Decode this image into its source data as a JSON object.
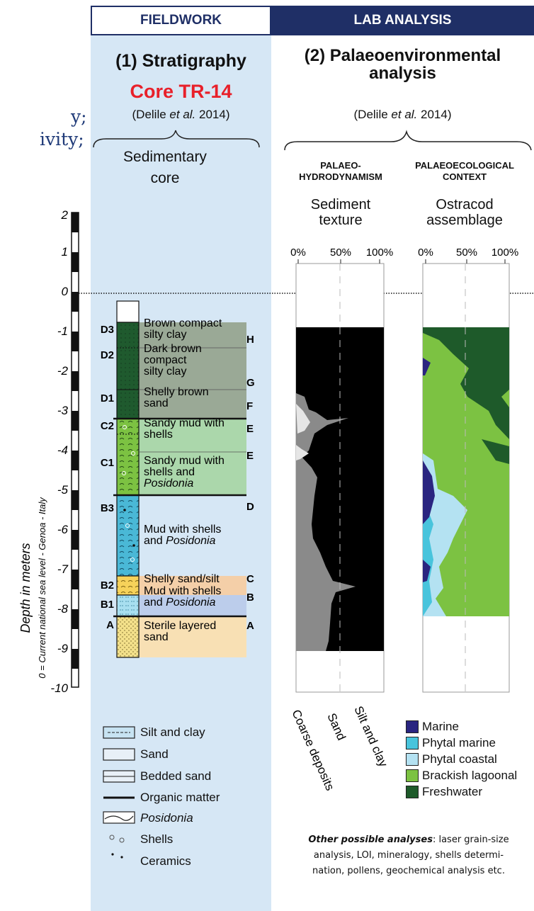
{
  "cut_text": [
    "y;",
    "ivity;"
  ],
  "headers": {
    "fieldwork": "FIELDWORK",
    "lab": "LAB ANALYSIS"
  },
  "stratigraphy": {
    "title": "(1) Stratigraphy",
    "core": "Core TR-14",
    "ref_prefix": "(Delile ",
    "ref_em": "et al.",
    "ref_suffix": " 2014)",
    "core_label_1": "Sedimentary",
    "core_label_2": "core"
  },
  "palaeo": {
    "title_1": "(2) Palaeoenvironmental",
    "title_2": "analysis",
    "ref_prefix": "(Delile ",
    "ref_em": "et al.",
    "ref_suffix": " 2014)",
    "hydro_1": "PALAEO-",
    "hydro_2": "HYDRODYNAMISM",
    "eco_1": "PALAEOECOLOGICAL",
    "eco_2": "CONTEXT",
    "texture_1": "Sediment",
    "texture_2": "texture",
    "ostracod_1": "Ostracod",
    "ostracod_2": "assemblage",
    "pct": [
      "0%",
      "50%",
      "100%"
    ],
    "texture_axis": [
      "Coarse deposits",
      "Sand",
      "Silt and clay"
    ]
  },
  "depth_axis": {
    "ticks": [
      "2",
      "1",
      "0",
      "-1",
      "-2",
      "-3",
      "-4",
      "-5",
      "-6",
      "-7",
      "-8",
      "-9",
      "-10"
    ],
    "label_1": "Depth in meters",
    "label_2": "0 = Current national sea level - Genoa - Italy"
  },
  "units": [
    {
      "code": "D3",
      "desc": [
        "Brown compact",
        "silty clay"
      ],
      "letter": "H"
    },
    {
      "code": "D2",
      "desc": [
        "Dark brown",
        "compact",
        "silty clay"
      ],
      "letter": "G"
    },
    {
      "code": "D1",
      "desc": [
        "Shelly brown",
        "sand"
      ],
      "letter": "F"
    },
    {
      "code": "C2",
      "desc": [
        "Sandy mud with",
        "shells"
      ],
      "letter": "E"
    },
    {
      "code": "C1",
      "desc": [
        "Sandy mud with",
        "shells and",
        "Posidonia"
      ],
      "letter": "E"
    },
    {
      "code": "B3",
      "desc": [
        "Mud with shells",
        "and Posidonia"
      ],
      "letter": "D"
    },
    {
      "code": "B2",
      "desc": [
        "Shelly sand/silt"
      ],
      "letter": "C"
    },
    {
      "code": "B1",
      "desc": [
        "Mud with shells",
        "and Posidonia"
      ],
      "letter": "B"
    },
    {
      "code": "A",
      "desc": [
        "Sterile layered",
        "sand"
      ],
      "letter": "A"
    }
  ],
  "legend": [
    "Silt and clay",
    "Sand",
    "Bedded sand",
    "Organic matter",
    "Posidonia",
    "Shells",
    "Ceramics"
  ],
  "ostracod_legend": [
    {
      "label": "Marine",
      "color": "#2a2580"
    },
    {
      "label": "Phytal marine",
      "color": "#48c4dc"
    },
    {
      "label": "Phytal coastal",
      "color": "#b4e2f2"
    },
    {
      "label": "Brackish lagoonal",
      "color": "#7cc242"
    },
    {
      "label": "Freshwater",
      "color": "#1e5a2a"
    }
  ],
  "other": {
    "lead": "Other possible analyses",
    "line1": ": laser grain-size",
    "line2": "analysis, LOI, mineralogy, shells determi-",
    "line3": "nation, pollens, geochemical analysis etc."
  },
  "colors": {
    "navy": "#1f2f66",
    "field_bg": "#d6e7f5",
    "core_red": "#e8202a"
  }
}
